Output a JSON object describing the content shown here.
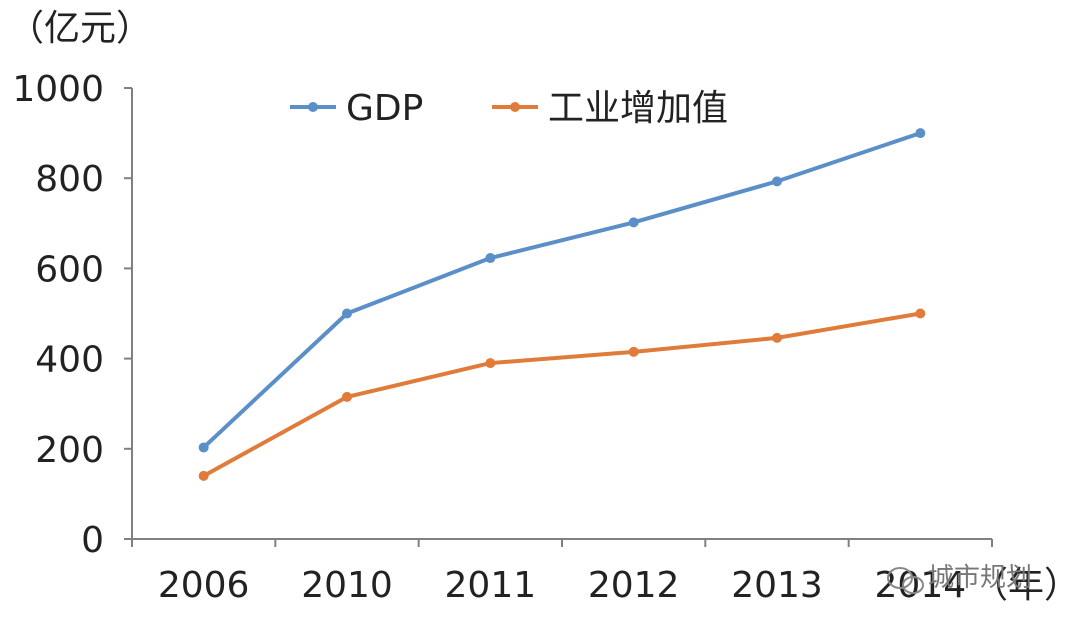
{
  "chart_data": {
    "type": "line",
    "categories": [
      "2006",
      "2010",
      "2011",
      "2012",
      "2013",
      "2014"
    ],
    "series": [
      {
        "name": "GDP",
        "values": [
          203,
          500,
          623,
          702,
          793,
          900
        ],
        "color": "#5B8FC7"
      },
      {
        "name": "工业增加值",
        "values": [
          140,
          315,
          390,
          415,
          446,
          500
        ],
        "color": "#E07B39"
      }
    ],
    "y_unit": "（亿元）",
    "x_unit": "（年）",
    "ylim": [
      0,
      1000
    ],
    "yticks": [
      "0",
      "200",
      "400",
      "600",
      "800",
      "1000"
    ],
    "grid": false,
    "legend_position": "top"
  },
  "watermark": "城市规划",
  "watermark_icon": "wechat-icon"
}
